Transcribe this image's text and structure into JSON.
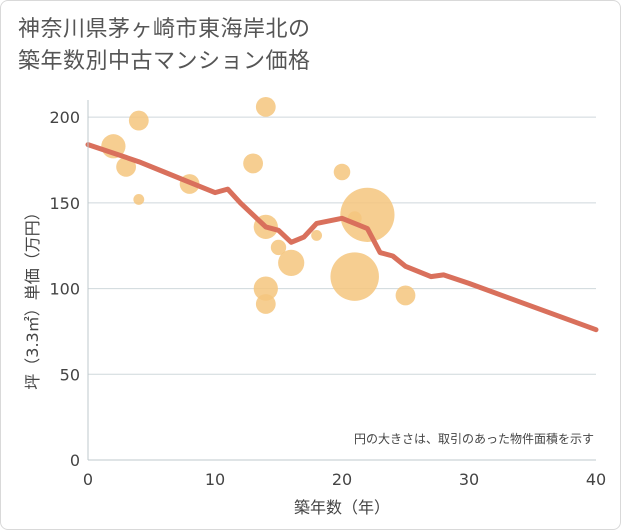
{
  "title_line1": "神奈川県茅ヶ崎市東海岸北の",
  "title_line2": "築年数別中古マンション価格",
  "chart_data": {
    "type": "scatter",
    "xlabel": "築年数（年）",
    "ylabel": "坪（3.3㎡）単価（万円）",
    "xlim": [
      0,
      40
    ],
    "ylim": [
      0,
      210
    ],
    "xticks": [
      0,
      10,
      20,
      30,
      40
    ],
    "yticks": [
      0,
      50,
      100,
      150,
      200
    ],
    "grid": "horizontal",
    "note": "円の大きさは、取引のあった物件面積を示す",
    "bubble_color": "#f5c57e",
    "line_color": "#d9705c",
    "points": [
      {
        "x": 2,
        "y": 183,
        "size": 3
      },
      {
        "x": 3,
        "y": 171,
        "size": 2
      },
      {
        "x": 4,
        "y": 198,
        "size": 2
      },
      {
        "x": 4,
        "y": 152,
        "size": 0.6
      },
      {
        "x": 8,
        "y": 161,
        "size": 2
      },
      {
        "x": 13,
        "y": 173,
        "size": 2
      },
      {
        "x": 14,
        "y": 206,
        "size": 2
      },
      {
        "x": 14,
        "y": 136,
        "size": 3
      },
      {
        "x": 14,
        "y": 100,
        "size": 3
      },
      {
        "x": 14,
        "y": 91,
        "size": 2
      },
      {
        "x": 15,
        "y": 124,
        "size": 1.2
      },
      {
        "x": 16,
        "y": 115,
        "size": 3.5
      },
      {
        "x": 18,
        "y": 131,
        "size": 0.6
      },
      {
        "x": 20,
        "y": 168,
        "size": 1.4
      },
      {
        "x": 21,
        "y": 141,
        "size": 1
      },
      {
        "x": 21,
        "y": 107,
        "size": 12
      },
      {
        "x": 22,
        "y": 143,
        "size": 15
      },
      {
        "x": 25,
        "y": 96,
        "size": 2
      }
    ],
    "trend": {
      "x": [
        0,
        2,
        4,
        6,
        8,
        10,
        11,
        12,
        13,
        14,
        15,
        16,
        17,
        18,
        20,
        22,
        23,
        24,
        25,
        27,
        28,
        30,
        40
      ],
      "y": [
        184,
        179,
        174,
        168,
        162,
        156,
        158,
        150,
        143,
        136,
        134,
        127,
        130,
        138,
        141,
        135,
        121,
        119,
        113,
        107,
        108,
        103,
        76
      ]
    }
  }
}
